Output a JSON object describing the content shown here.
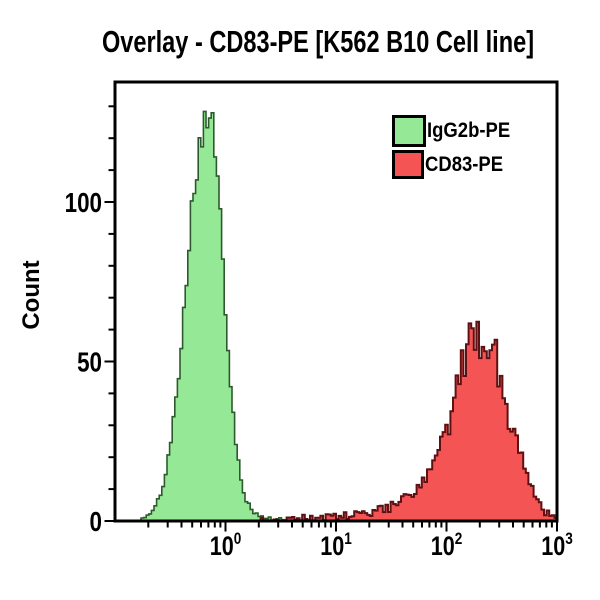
{
  "chart_data": {
    "type": "area",
    "subtype": "flow-cytometry-histogram-overlay",
    "title": "Overlay - CD83-PE [K562 B10 Cell line]",
    "xlabel": "",
    "ylabel": "Count",
    "x_scale": "log10",
    "x_range_log10": [
      -1,
      3
    ],
    "ylim": [
      0,
      137
    ],
    "grid": false,
    "x_major_ticks": [
      {
        "log10": 0,
        "label": "10^0"
      },
      {
        "log10": 1,
        "label": "10^1"
      },
      {
        "log10": 2,
        "label": "10^2"
      },
      {
        "log10": 3,
        "label": "10^3"
      }
    ],
    "y_major_ticks": [
      {
        "value": 0,
        "label": "0"
      },
      {
        "value": 50,
        "label": "50"
      },
      {
        "value": 100,
        "label": "100"
      }
    ],
    "y_minor_tick_step": 10,
    "legend": {
      "position": "top-right",
      "entries": [
        {
          "label": "IgG2b-PE",
          "fill": "#95e895",
          "stroke": "#2d5a2d"
        },
        {
          "label": "CD83-PE",
          "fill": "#f45454",
          "stroke": "#5f1012"
        }
      ]
    },
    "series": [
      {
        "name": "IgG2b-PE",
        "fill": "#95e895",
        "stroke": "#2d5a2d",
        "stroke_width": 1.6,
        "peak": {
          "x": 0.7,
          "count": 130
        },
        "noise": {
          "seed": 101,
          "rel": 0.05,
          "abs": 0.5
        },
        "envelope_log10x_count": [
          [
            -1.0,
            0
          ],
          [
            -0.8,
            0
          ],
          [
            -0.73,
            1
          ],
          [
            -0.66,
            3
          ],
          [
            -0.6,
            7
          ],
          [
            -0.54,
            15
          ],
          [
            -0.48,
            28
          ],
          [
            -0.42,
            48
          ],
          [
            -0.36,
            75
          ],
          [
            -0.3,
            100
          ],
          [
            -0.25,
            115
          ],
          [
            -0.2,
            126
          ],
          [
            -0.16,
            130
          ],
          [
            -0.12,
            124
          ],
          [
            -0.08,
            110
          ],
          [
            -0.04,
            90
          ],
          [
            0.0,
            68
          ],
          [
            0.04,
            47
          ],
          [
            0.08,
            30
          ],
          [
            0.12,
            18
          ],
          [
            0.16,
            10
          ],
          [
            0.2,
            5.5
          ],
          [
            0.25,
            3
          ],
          [
            0.31,
            1.5
          ],
          [
            0.38,
            0.8
          ],
          [
            0.5,
            0.5
          ],
          [
            0.7,
            0.35
          ],
          [
            0.95,
            0.2
          ],
          [
            1.15,
            0
          ]
        ]
      },
      {
        "name": "CD83-PE",
        "fill": "#f45454",
        "stroke": "#5f1012",
        "stroke_width": 2,
        "peak": {
          "x": 190,
          "count": 60
        },
        "noise": {
          "seed": 202,
          "rel": 0.14,
          "abs": 1.0
        },
        "envelope_log10x_count": [
          [
            0.3,
            0
          ],
          [
            0.45,
            0.5
          ],
          [
            0.6,
            0.8
          ],
          [
            0.75,
            1
          ],
          [
            0.9,
            1.2
          ],
          [
            1.05,
            1.5
          ],
          [
            1.2,
            2
          ],
          [
            1.35,
            3
          ],
          [
            1.5,
            4.5
          ],
          [
            1.62,
            6.5
          ],
          [
            1.72,
            9
          ],
          [
            1.82,
            13
          ],
          [
            1.9,
            18
          ],
          [
            1.98,
            26
          ],
          [
            2.06,
            36
          ],
          [
            2.14,
            46
          ],
          [
            2.2,
            53
          ],
          [
            2.26,
            58
          ],
          [
            2.32,
            60
          ],
          [
            2.38,
            57
          ],
          [
            2.44,
            51
          ],
          [
            2.5,
            43
          ],
          [
            2.56,
            35
          ],
          [
            2.62,
            27
          ],
          [
            2.68,
            20
          ],
          [
            2.74,
            14
          ],
          [
            2.8,
            8.5
          ],
          [
            2.86,
            4.5
          ],
          [
            2.91,
            2.5
          ],
          [
            2.95,
            1.5
          ],
          [
            3.0,
            1
          ]
        ]
      }
    ]
  }
}
